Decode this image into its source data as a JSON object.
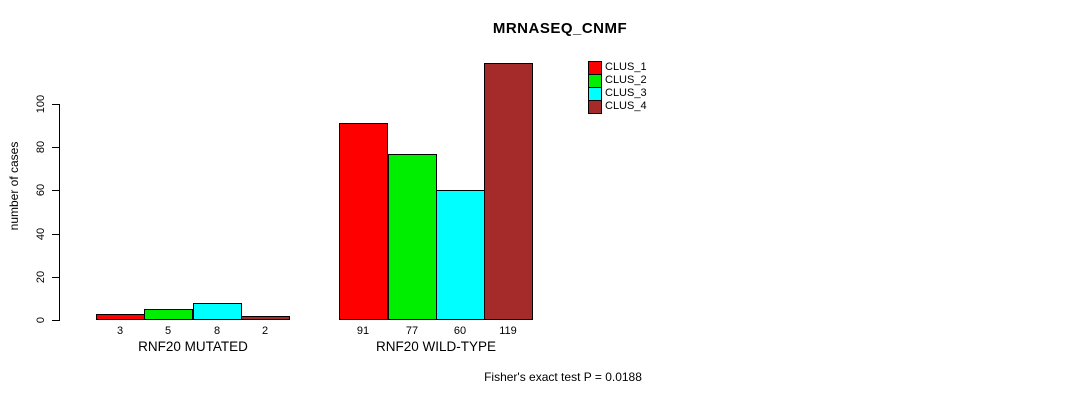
{
  "title": "MRNASEQ_CNMF",
  "footnote": "Fisher's exact test P = 0.0188",
  "chart_data": {
    "type": "bar",
    "title": "MRNASEQ_CNMF",
    "xlabel": "",
    "ylabel": "number of cases",
    "ylim": [
      0,
      120
    ],
    "yticks": [
      0,
      20,
      40,
      60,
      80,
      100
    ],
    "grid": false,
    "categories": [
      "RNF20 MUTATED",
      "RNF20 WILD-TYPE"
    ],
    "series": [
      {
        "name": "CLUS_1",
        "color": "#ff0000",
        "values": [
          3,
          91
        ]
      },
      {
        "name": "CLUS_2",
        "color": "#00ee00",
        "values": [
          5,
          77
        ]
      },
      {
        "name": "CLUS_3",
        "color": "#00ffff",
        "values": [
          8,
          60
        ]
      },
      {
        "name": "CLUS_4",
        "color": "#a52a2a",
        "values": [
          2,
          119
        ]
      }
    ],
    "bar_value_labels": [
      [
        3,
        5,
        8,
        2
      ],
      [
        91,
        77,
        60,
        119
      ]
    ],
    "legend": {
      "position": "top-right",
      "entries": [
        "CLUS_1",
        "CLUS_2",
        "CLUS_3",
        "CLUS_4"
      ]
    },
    "annotation": "Fisher's exact test P = 0.0188"
  }
}
